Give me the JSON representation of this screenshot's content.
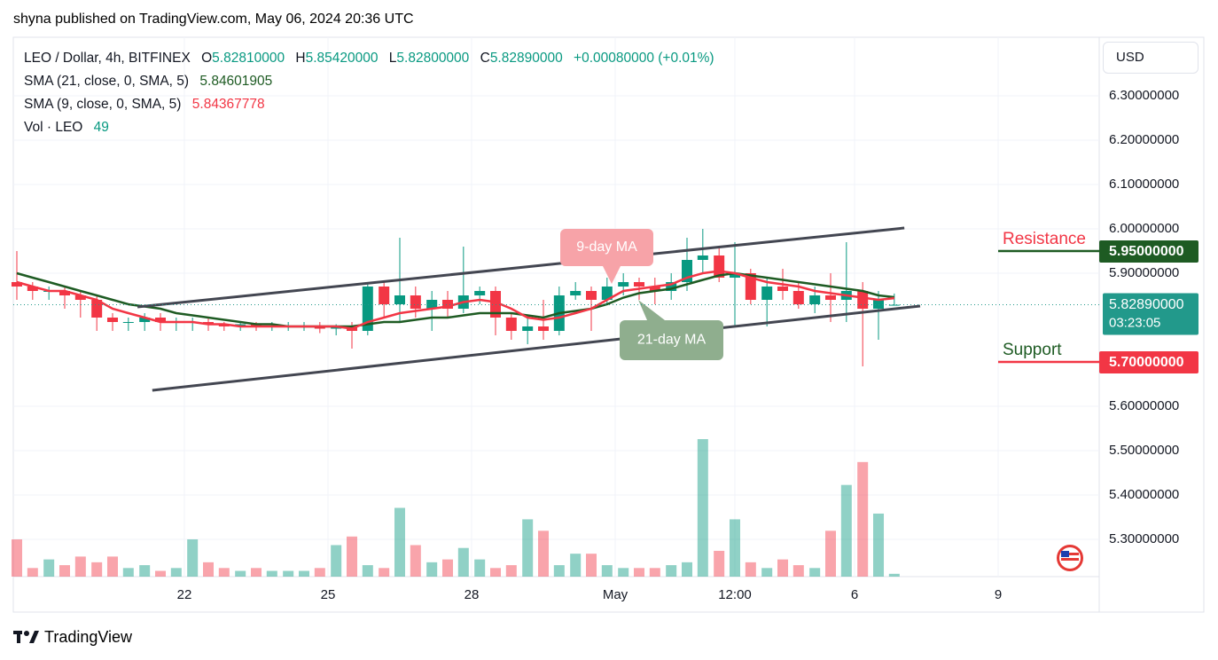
{
  "header": {
    "text": "shyna published on TradingView.com, May 06, 2024 20:36 UTC"
  },
  "footer": {
    "brand": "TradingView"
  },
  "currency_button": "USD",
  "chart_data": {
    "type": "candlestick",
    "symbol": "LEO / Dollar, 4h, BITFINEX",
    "ohlc_legend": [
      {
        "key": "O",
        "value": "5.82810000"
      },
      {
        "key": "H",
        "value": "5.85420000"
      },
      {
        "key": "L",
        "value": "5.82800000"
      },
      {
        "key": "C",
        "value": "5.82890000"
      }
    ],
    "change": "+0.00080000 (+0.01%)",
    "volume_label": "Vol · LEO",
    "up_color": "#089981",
    "down_color": "#f23645",
    "x": [
      -3.5,
      -3.17,
      -2.83,
      -2.5,
      -2.17,
      -1.83,
      -1.5,
      -1.17,
      -0.83,
      -0.5,
      -0.17,
      0.17,
      0.5,
      0.83,
      1.17,
      1.5,
      1.83,
      2.17,
      2.5,
      2.83,
      3.17,
      3.5,
      3.83,
      4.17,
      4.5,
      4.83,
      5.17,
      5.5,
      5.83,
      6.17,
      6.5,
      6.83,
      7.17,
      7.5,
      7.83,
      8.17,
      8.5,
      8.83,
      9.17,
      9.5,
      9.83,
      10.17,
      10.5,
      10.83,
      11.17,
      11.5,
      11.83,
      12.17,
      12.5,
      12.83,
      13.17,
      13.5,
      13.83,
      14.17,
      14.5,
      14.83
    ],
    "open": [
      5.88,
      5.87,
      5.86,
      5.86,
      5.85,
      5.84,
      5.8,
      5.79,
      5.79,
      5.8,
      5.79,
      5.79,
      5.79,
      5.785,
      5.78,
      5.785,
      5.78,
      5.78,
      5.78,
      5.78,
      5.775,
      5.78,
      5.77,
      5.87,
      5.83,
      5.85,
      5.82,
      5.84,
      5.82,
      5.85,
      5.86,
      5.8,
      5.77,
      5.78,
      5.77,
      5.85,
      5.86,
      5.84,
      5.87,
      5.88,
      5.87,
      5.86,
      5.88,
      5.93,
      5.94,
      5.89,
      5.9,
      5.84,
      5.87,
      5.86,
      5.83,
      5.85,
      5.84,
      5.86,
      5.82,
      5.8281
    ],
    "high": [
      5.95,
      5.88,
      5.87,
      5.87,
      5.86,
      5.85,
      5.81,
      5.8,
      5.81,
      5.81,
      5.8,
      5.8,
      5.8,
      5.79,
      5.79,
      5.79,
      5.79,
      5.79,
      5.79,
      5.79,
      5.785,
      5.79,
      5.88,
      5.88,
      5.98,
      5.87,
      5.86,
      5.86,
      5.96,
      5.87,
      5.87,
      5.81,
      5.8,
      5.84,
      5.87,
      5.88,
      5.87,
      5.89,
      5.9,
      5.89,
      5.89,
      5.9,
      5.98,
      6.0,
      5.96,
      5.97,
      5.91,
      5.89,
      5.91,
      5.88,
      5.87,
      5.9,
      5.97,
      5.88,
      5.86,
      5.8542
    ],
    "low": [
      5.84,
      5.84,
      5.84,
      5.82,
      5.8,
      5.77,
      5.77,
      5.77,
      5.77,
      5.77,
      5.77,
      5.77,
      5.77,
      5.77,
      5.77,
      5.77,
      5.77,
      5.77,
      5.77,
      5.765,
      5.76,
      5.73,
      5.76,
      5.8,
      5.79,
      5.8,
      5.77,
      5.8,
      5.81,
      5.83,
      5.76,
      5.75,
      5.74,
      5.75,
      5.76,
      5.84,
      5.77,
      5.83,
      5.85,
      5.84,
      5.83,
      5.84,
      5.86,
      5.9,
      5.88,
      5.78,
      5.83,
      5.78,
      5.84,
      5.82,
      5.81,
      5.79,
      5.79,
      5.69,
      5.75,
      5.828
    ],
    "close": [
      5.87,
      5.86,
      5.86,
      5.85,
      5.84,
      5.8,
      5.79,
      5.79,
      5.8,
      5.79,
      5.79,
      5.79,
      5.785,
      5.78,
      5.785,
      5.78,
      5.78,
      5.78,
      5.78,
      5.775,
      5.78,
      5.77,
      5.87,
      5.83,
      5.85,
      5.82,
      5.84,
      5.82,
      5.85,
      5.86,
      5.8,
      5.77,
      5.78,
      5.77,
      5.85,
      5.86,
      5.84,
      5.87,
      5.88,
      5.87,
      5.86,
      5.88,
      5.93,
      5.94,
      5.89,
      5.9,
      5.84,
      5.87,
      5.86,
      5.83,
      5.85,
      5.84,
      5.86,
      5.82,
      5.84,
      5.8289
    ],
    "volume": [
      650,
      150,
      300,
      200,
      350,
      250,
      350,
      150,
      200,
      100,
      150,
      650,
      250,
      150,
      100,
      150,
      100,
      100,
      100,
      150,
      550,
      700,
      200,
      150,
      1200,
      550,
      250,
      300,
      500,
      300,
      150,
      200,
      1000,
      800,
      200,
      400,
      400,
      200,
      150,
      150,
      150,
      200,
      250,
      2400,
      450,
      1000,
      250,
      150,
      300,
      200,
      150,
      800,
      1600,
      2000,
      1100,
      49
    ],
    "indicators": [
      {
        "label": "SMA (21, close, 0, SMA, 5)",
        "color": "#1e5b23",
        "values": [
          5.9,
          5.89,
          5.88,
          5.87,
          5.86,
          5.85,
          5.84,
          5.83,
          5.825,
          5.82,
          5.81,
          5.805,
          5.8,
          5.795,
          5.79,
          5.785,
          5.785,
          5.78,
          5.78,
          5.78,
          5.78,
          5.78,
          5.785,
          5.79,
          5.79,
          5.795,
          5.8,
          5.8,
          5.805,
          5.81,
          5.81,
          5.81,
          5.805,
          5.8,
          5.81,
          5.815,
          5.82,
          5.83,
          5.845,
          5.855,
          5.86,
          5.865,
          5.875,
          5.885,
          5.895,
          5.9,
          5.895,
          5.89,
          5.885,
          5.88,
          5.875,
          5.87,
          5.865,
          5.86,
          5.85,
          5.84601905
        ]
      },
      {
        "label": "SMA (9, close, 0, SMA, 5)",
        "color": "#f23645",
        "values": [
          5.88,
          5.87,
          5.86,
          5.86,
          5.85,
          5.84,
          5.82,
          5.81,
          5.8,
          5.79,
          5.79,
          5.79,
          5.785,
          5.785,
          5.78,
          5.78,
          5.78,
          5.78,
          5.78,
          5.78,
          5.78,
          5.775,
          5.79,
          5.8,
          5.81,
          5.815,
          5.82,
          5.825,
          5.835,
          5.84,
          5.835,
          5.82,
          5.8,
          5.795,
          5.8,
          5.81,
          5.82,
          5.84,
          5.86,
          5.865,
          5.87,
          5.875,
          5.89,
          5.9,
          5.905,
          5.9,
          5.89,
          5.88,
          5.875,
          5.87,
          5.86,
          5.855,
          5.85,
          5.845,
          5.84,
          5.84367778
        ]
      }
    ],
    "annotations": [
      {
        "text": "9-day MA",
        "color": "#f7a3a8"
      },
      {
        "text": "21-day MA",
        "color": "#8fae8e"
      }
    ],
    "trendlines": [
      {
        "x": [
          -0.98,
          15.04
        ],
        "y": [
          5.824,
          6.002
        ]
      },
      {
        "x": [
          -0.67,
          15.37
        ],
        "y": [
          5.636,
          5.826
        ]
      }
    ],
    "levels": [
      {
        "name": "Resistance",
        "value": 5.95,
        "label": "5.95000000",
        "color": "#1e5b23",
        "text_color": "#f23645"
      },
      {
        "name": "Support",
        "value": 5.7,
        "label": "5.70000000",
        "color": "#f23645",
        "text_color": "#1e5b23"
      }
    ],
    "last_price": {
      "value": 5.8289,
      "label": "5.82890000",
      "countdown": "03:23:05",
      "color": "#22998b"
    },
    "ylim": [
      5.216,
      6.432
    ],
    "yticks": [
      {
        "value": 6.3,
        "label": "6.30000000"
      },
      {
        "value": 6.2,
        "label": "6.20000000"
      },
      {
        "value": 6.1,
        "label": "6.10000000"
      },
      {
        "value": 6.0,
        "label": "6.00000000"
      },
      {
        "value": 5.9,
        "label": "5.90000000"
      },
      {
        "value": 5.6,
        "label": "5.60000000"
      },
      {
        "value": 5.5,
        "label": "5.50000000"
      },
      {
        "value": 5.4,
        "label": "5.40000000"
      },
      {
        "value": 5.3,
        "label": "5.30000000"
      }
    ],
    "xlim": [
      -3.574,
      19.111
    ],
    "xticks": [
      {
        "value": 0,
        "label": "22"
      },
      {
        "value": 3,
        "label": "25"
      },
      {
        "value": 6,
        "label": "28"
      },
      {
        "value": 9,
        "label": "May"
      },
      {
        "value": 11.5,
        "label": "12:00"
      },
      {
        "value": 14,
        "label": "6"
      },
      {
        "value": 17,
        "label": "9"
      }
    ],
    "grid": true
  }
}
